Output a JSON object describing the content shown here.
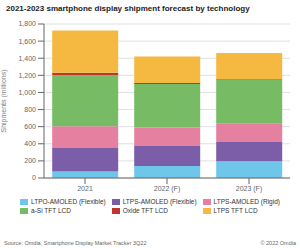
{
  "chart_data": {
    "type": "bar",
    "title": "2021-2023 smartphone display shipment forecast by technology",
    "categories": [
      "2021",
      "2022 (F)",
      "2023 (F)"
    ],
    "ylabel": "Shipments (millions)",
    "ylim": [
      0,
      1800
    ],
    "yticks": [
      0,
      200,
      400,
      600,
      800,
      {
        "value": 1000,
        "label": "1,000"
      },
      {
        "value": 1200,
        "label": "1,200"
      },
      {
        "value": 1400,
        "label": "1,400"
      },
      {
        "value": 1600,
        "label": "1,600"
      },
      {
        "value": 1800,
        "label": "1,800"
      }
    ],
    "stacked": true,
    "grid": true,
    "legend": "bottom",
    "annotations": [
      "Source: Omdia, Smartphone Display Market Tracker 3Q22",
      "© 2022 Omdia"
    ],
    "series": [
      {
        "name": "LTPO-AMOLED (Flexible)",
        "color": "#6EC6EA",
        "values": [
          75,
          140,
          195
        ]
      },
      {
        "name": "LTPS-AMOLED (Flexible)",
        "color": "#7B5EA7",
        "values": [
          275,
          235,
          225
        ]
      },
      {
        "name": "LTPS-AMOLED (Rigid)",
        "color": "#E680A0",
        "values": [
          255,
          215,
          215
        ]
      },
      {
        "name": "a-Si TFT LCD",
        "color": "#77BC65",
        "values": [
          600,
          510,
          510
        ]
      },
      {
        "name": "Oxide TFT LCD",
        "color": "#C0362C",
        "values": [
          25,
          10,
          10
        ]
      },
      {
        "name": "LTPS TFT LCD",
        "color": "#F5B942",
        "values": [
          495,
          310,
          305
        ]
      }
    ]
  }
}
